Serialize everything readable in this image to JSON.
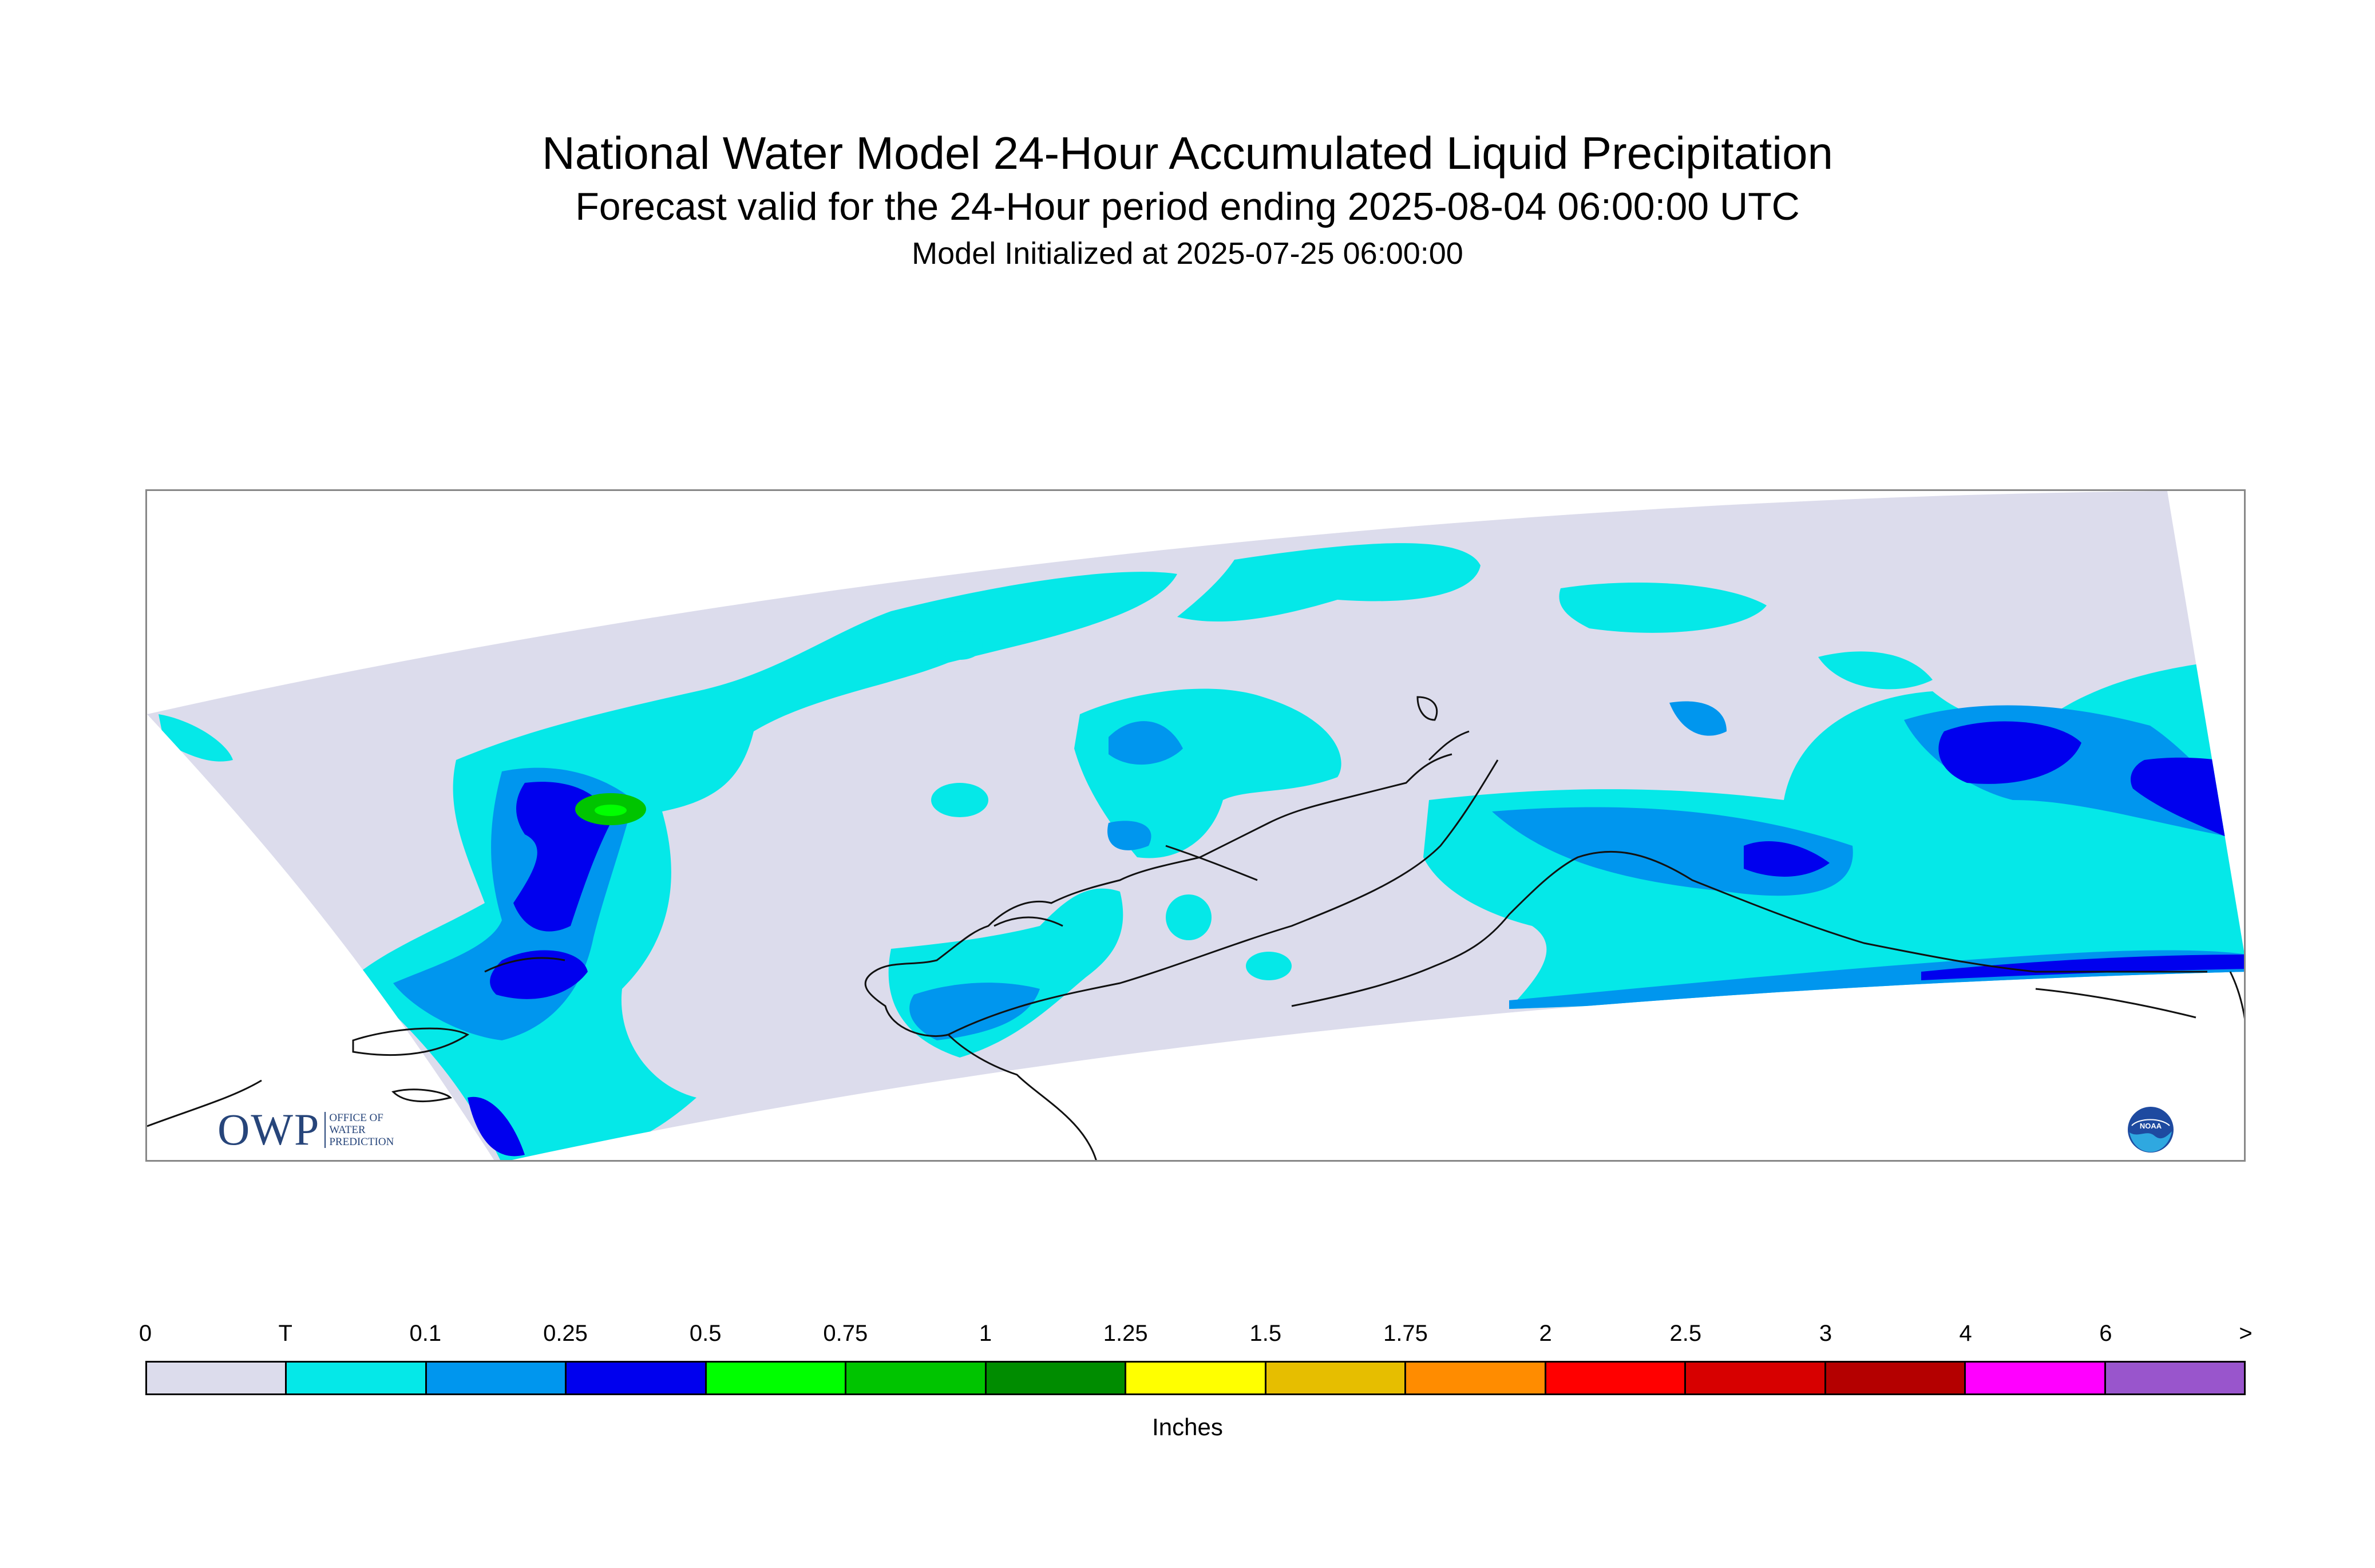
{
  "header": {
    "title": "National Water Model 24-Hour Accumulated Liquid Precipitation",
    "subtitle": "Forecast valid for the 24-Hour period ending 2025-08-04 06:00:00 UTC",
    "init": "Model Initialized at 2025-07-25 06:00:00"
  },
  "map": {
    "domain_fill": "#dcdcec",
    "coastline_color": "#111111"
  },
  "colorbar": {
    "labels": [
      "0",
      "T",
      "0.1",
      "0.25",
      "0.5",
      "0.75",
      "1",
      "1.25",
      "1.5",
      "1.75",
      "2",
      "2.5",
      "3",
      "4",
      "6",
      ">"
    ],
    "colors": [
      "#dcdcec",
      "#05e8e8",
      "#0096ee",
      "#0000ee",
      "#00ff00",
      "#00c400",
      "#008c00",
      "#ffff00",
      "#e6be00",
      "#ff8c00",
      "#ff0000",
      "#d70000",
      "#b40000",
      "#ff00ff",
      "#9955cc"
    ],
    "units": "Inches"
  },
  "logos": {
    "owp_text": "OWP",
    "owp_lines": [
      "OFFICE OF",
      "WATER",
      "PREDICTION"
    ],
    "noaa_text": "NOAA"
  }
}
